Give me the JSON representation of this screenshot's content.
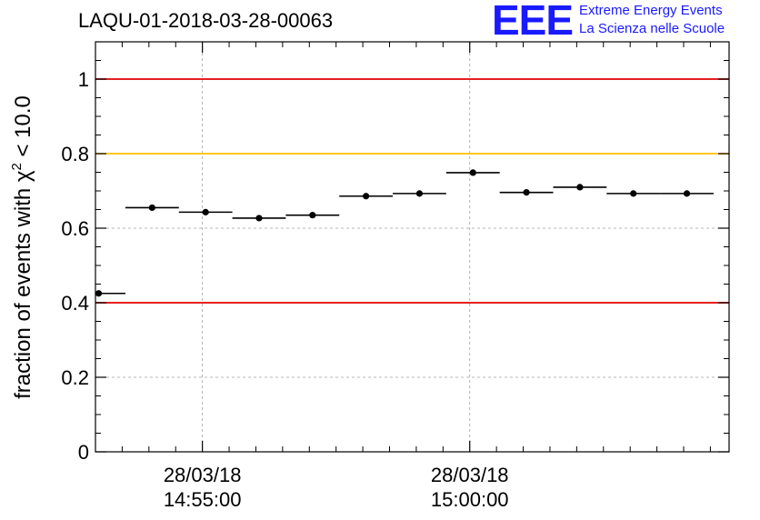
{
  "header": {
    "title": "LAQU-01-2018-03-28-00063",
    "logo_mark": "EEE",
    "logo_line1": "Extreme Energy Events",
    "logo_line2": "La Scienza nelle Scuole"
  },
  "colors": {
    "logo": "#1a1aff",
    "red_line": "#e00000",
    "yellow_line": "#ffc000",
    "grid": "#a0a0a0",
    "marker": "#000000"
  },
  "chart_data": {
    "type": "scatter",
    "title": "LAQU-01-2018-03-28-00063",
    "ylabel_main": "fraction of events with χ",
    "ylabel_sup": "2",
    "ylabel_tail": " < 10.0",
    "xlabel": "",
    "ylim": [
      0,
      1.1
    ],
    "xlim_minutes": [
      -2.0,
      9.85
    ],
    "y_ticks": [
      0,
      0.2,
      0.4,
      0.6,
      0.8,
      1
    ],
    "y_tick_labels": [
      "0",
      "0.2",
      "0.4",
      "0.6",
      "0.8",
      "1"
    ],
    "x_major_ticks_minutes": [
      0,
      5
    ],
    "x_tick_labels": [
      {
        "date": "28/03/18",
        "time": "14:55:00"
      },
      {
        "date": "28/03/18",
        "time": "15:00:00"
      }
    ],
    "x_minor_step_minutes": 0.5,
    "x_origin_time": "14:55:00",
    "bin_half_width_minutes": 0.5,
    "grid": true,
    "reference_lines": [
      {
        "y": 1.0,
        "color": "red"
      },
      {
        "y": 0.8,
        "color": "yellow"
      },
      {
        "y": 0.4,
        "color": "red"
      }
    ],
    "series": [
      {
        "x_minutes": [
          -1.94,
          -0.94,
          0.06,
          1.06,
          2.06,
          3.06,
          4.06,
          5.06,
          6.06,
          7.06,
          8.06,
          9.06
        ],
        "values": [
          0.425,
          0.655,
          0.643,
          0.627,
          0.635,
          0.686,
          0.693,
          0.749,
          0.696,
          0.71,
          0.693,
          0.693
        ]
      }
    ]
  }
}
